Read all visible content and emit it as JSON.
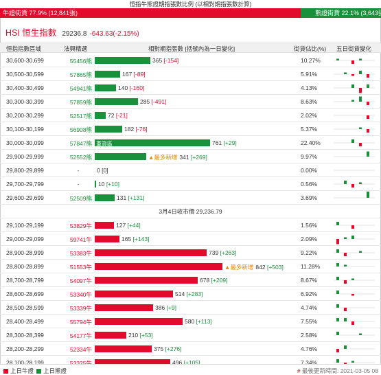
{
  "title": "恒指牛熊證期指張數比例 (以相對期指張數計算)",
  "ratio": {
    "bull_label": "牛證街貨 77.9% (12,841張)",
    "bear_label": "熊證街貨 22.1% (3,643張)",
    "bull_pct": 77.9,
    "bear_pct": 22.1,
    "bull_color": "#e30b2c",
    "bear_color": "#19913a"
  },
  "index": {
    "name": "HSI 恒生指數",
    "price": "29236.8",
    "change": "-643.63(-2.15%)"
  },
  "headers": {
    "range": "恒指指數區域",
    "count": "法興精選",
    "bar": "相對期指張數 [括號內為一日變化]",
    "pct": "街貨佔比(%)",
    "trend": "五日街貨變化"
  },
  "bear_rows": [
    {
      "range": "30,600-30,699",
      "count": "55456熊",
      "value": 365,
      "value_label": "365",
      "change": "[-154]",
      "change_sign": "neg",
      "pct": "10.27%",
      "spark": [
        1,
        0,
        -2,
        1,
        0
      ]
    },
    {
      "range": "30,500-30,599",
      "count": "57865熊",
      "value": 167,
      "value_label": "167",
      "change": "[-89]",
      "change_sign": "neg",
      "pct": "5.91%",
      "spark": [
        0,
        1,
        -1,
        2,
        -2
      ]
    },
    {
      "range": "30,400-30,499",
      "count": "54941熊",
      "value": 140,
      "value_label": "140",
      "change": "[-160]",
      "change_sign": "neg",
      "pct": "4.13%",
      "spark": [
        0,
        0,
        2,
        -3,
        2
      ]
    },
    {
      "range": "30,300-30,399",
      "count": "57859熊",
      "value": 285,
      "value_label": "285",
      "change": "[-491]",
      "change_sign": "neg",
      "pct": "8.63%",
      "spark": [
        0,
        0,
        1,
        3,
        -2
      ]
    },
    {
      "range": "30,200-30,299",
      "count": "52517熊",
      "value": 72,
      "value_label": "72",
      "change": "[-21]",
      "change_sign": "neg",
      "pct": "2.02%",
      "spark": [
        0,
        0,
        0,
        0,
        -2
      ]
    },
    {
      "range": "30,100-30,199",
      "count": "56908熊",
      "value": 182,
      "value_label": "182",
      "change": "[-76]",
      "change_sign": "neg",
      "pct": "5.37%",
      "spark": [
        0,
        0,
        0,
        1,
        -2
      ]
    },
    {
      "range": "30,000-30,099",
      "count": "57847熊",
      "value": 761,
      "value_label": "761",
      "change": "[+29]",
      "change_sign": "pos",
      "pct": "22.40%",
      "spark": [
        0,
        0,
        2,
        -2,
        0
      ],
      "tag": "重貨區"
    },
    {
      "range": "29,900-29,999",
      "count": "52552熊",
      "value": 341,
      "value_label": "341",
      "change": "[+269]",
      "change_sign": "pos",
      "pct": "9.97%",
      "spark": [
        0,
        0,
        0,
        0,
        3
      ],
      "most": "▲最多新增"
    },
    {
      "range": "29,800-29,899",
      "count": "-",
      "value": 0,
      "value_label": "0",
      "change": "[0]",
      "change_sign": "zero",
      "pct": "0.00%",
      "spark": [
        0,
        0,
        0,
        0,
        0
      ]
    },
    {
      "range": "29,700-29,799",
      "count": "-",
      "value": 10,
      "value_label": "10",
      "change": "[+10]",
      "change_sign": "pos",
      "pct": "0.56%",
      "spark": [
        0,
        2,
        -2,
        1,
        0
      ]
    },
    {
      "range": "29,600-29,699",
      "count": "52509熊",
      "value": 131,
      "value_label": "131",
      "change": "[+131]",
      "change_sign": "pos",
      "pct": "3.69%",
      "spark": [
        0,
        0,
        0,
        0,
        4
      ]
    }
  ],
  "divider": "3月4日收市價 29,236.79",
  "bull_rows": [
    {
      "range": "29,100-29,199",
      "count": "53829牛",
      "value": 127,
      "value_label": "127",
      "change": "[+44]",
      "change_sign": "pos",
      "pct": "1.56%",
      "spark": [
        2,
        0,
        -2,
        0,
        0
      ]
    },
    {
      "range": "29,000-29,099",
      "count": "59741牛",
      "value": 165,
      "value_label": "165",
      "change": "[+143]",
      "change_sign": "pos",
      "pct": "2.09%",
      "spark": [
        -3,
        1,
        2,
        0,
        0
      ]
    },
    {
      "range": "28,900-28,999",
      "count": "53383牛",
      "value": 739,
      "value_label": "739",
      "change": "[+263]",
      "change_sign": "pos",
      "pct": "9.22%",
      "spark": [
        2,
        -2,
        0,
        1,
        0
      ]
    },
    {
      "range": "28,800-28,899",
      "count": "51553牛",
      "value": 842,
      "value_label": "842",
      "change": "[+503]",
      "change_sign": "pos",
      "pct": "11.28%",
      "spark": [
        2,
        1,
        0,
        0,
        0
      ],
      "most": "▲最多新增"
    },
    {
      "range": "28,700-28,799",
      "count": "54097牛",
      "value": 678,
      "value_label": "678",
      "change": "[+209]",
      "change_sign": "pos",
      "pct": "8.67%",
      "spark": [
        2,
        -2,
        1,
        0,
        0
      ]
    },
    {
      "range": "28,600-28,699",
      "count": "53340牛",
      "value": 514,
      "value_label": "514",
      "change": "[+283]",
      "change_sign": "pos",
      "pct": "6.92%",
      "spark": [
        2,
        0,
        -1,
        0,
        0
      ]
    },
    {
      "range": "28,500-28,599",
      "count": "53339牛",
      "value": 386,
      "value_label": "386",
      "change": "[+9]",
      "change_sign": "pos",
      "pct": "4.74%",
      "spark": [
        2,
        -2,
        0,
        0,
        0
      ]
    },
    {
      "range": "28,400-28,499",
      "count": "55794牛",
      "value": 580,
      "value_label": "580",
      "change": "[+113]",
      "change_sign": "pos",
      "pct": "7.55%",
      "spark": [
        2,
        2,
        -2,
        0,
        0
      ]
    },
    {
      "range": "28,300-28,399",
      "count": "54177牛",
      "value": 210,
      "value_label": "210",
      "change": "[+53]",
      "change_sign": "pos",
      "pct": "2.58%",
      "spark": [
        2,
        0,
        0,
        1,
        0
      ]
    },
    {
      "range": "28,200-28,299",
      "count": "52334牛",
      "value": 375,
      "value_label": "375",
      "change": "[+276]",
      "change_sign": "pos",
      "pct": "4.76%",
      "spark": [
        -2,
        2,
        0,
        0,
        0
      ]
    },
    {
      "range": "28,100-28,199",
      "count": "53325牛",
      "value": 496,
      "value_label": "496",
      "change": "[+105]",
      "change_sign": "pos",
      "pct": "7.34%",
      "spark": [
        2,
        -2,
        1,
        0,
        0
      ]
    }
  ],
  "footer": {
    "bull_legend": "上日牛證",
    "bear_legend": "上日熊證",
    "updated": "最後更新時間: 2021-03-05 08"
  }
}
